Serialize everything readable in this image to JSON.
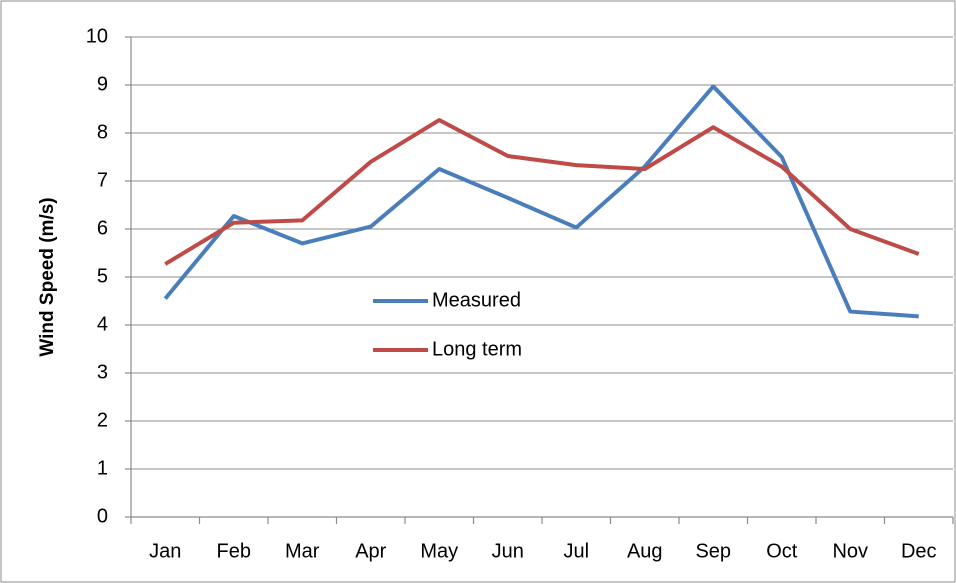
{
  "chart_data": {
    "type": "line",
    "y_label": "Wind Speed (m/s)",
    "categories": [
      "Jan",
      "Feb",
      "Mar",
      "Apr",
      "May",
      "Jun",
      "Jul",
      "Aug",
      "Sep",
      "Oct",
      "Nov",
      "Dec"
    ],
    "series": [
      {
        "name": "Measured",
        "color": "#4a7ebb",
        "values": [
          4.55,
          6.27,
          5.7,
          6.05,
          7.25,
          6.65,
          6.03,
          7.3,
          8.97,
          7.5,
          4.28,
          4.18
        ]
      },
      {
        "name": "Long term",
        "color": "#be4b48",
        "values": [
          5.27,
          6.13,
          6.18,
          7.4,
          8.27,
          7.52,
          7.33,
          7.25,
          8.12,
          7.3,
          6.0,
          5.48
        ]
      }
    ],
    "ylim": [
      0,
      10
    ],
    "yticks": [
      0,
      1,
      2,
      3,
      4,
      5,
      6,
      7,
      8,
      9,
      10
    ],
    "grid": true
  }
}
